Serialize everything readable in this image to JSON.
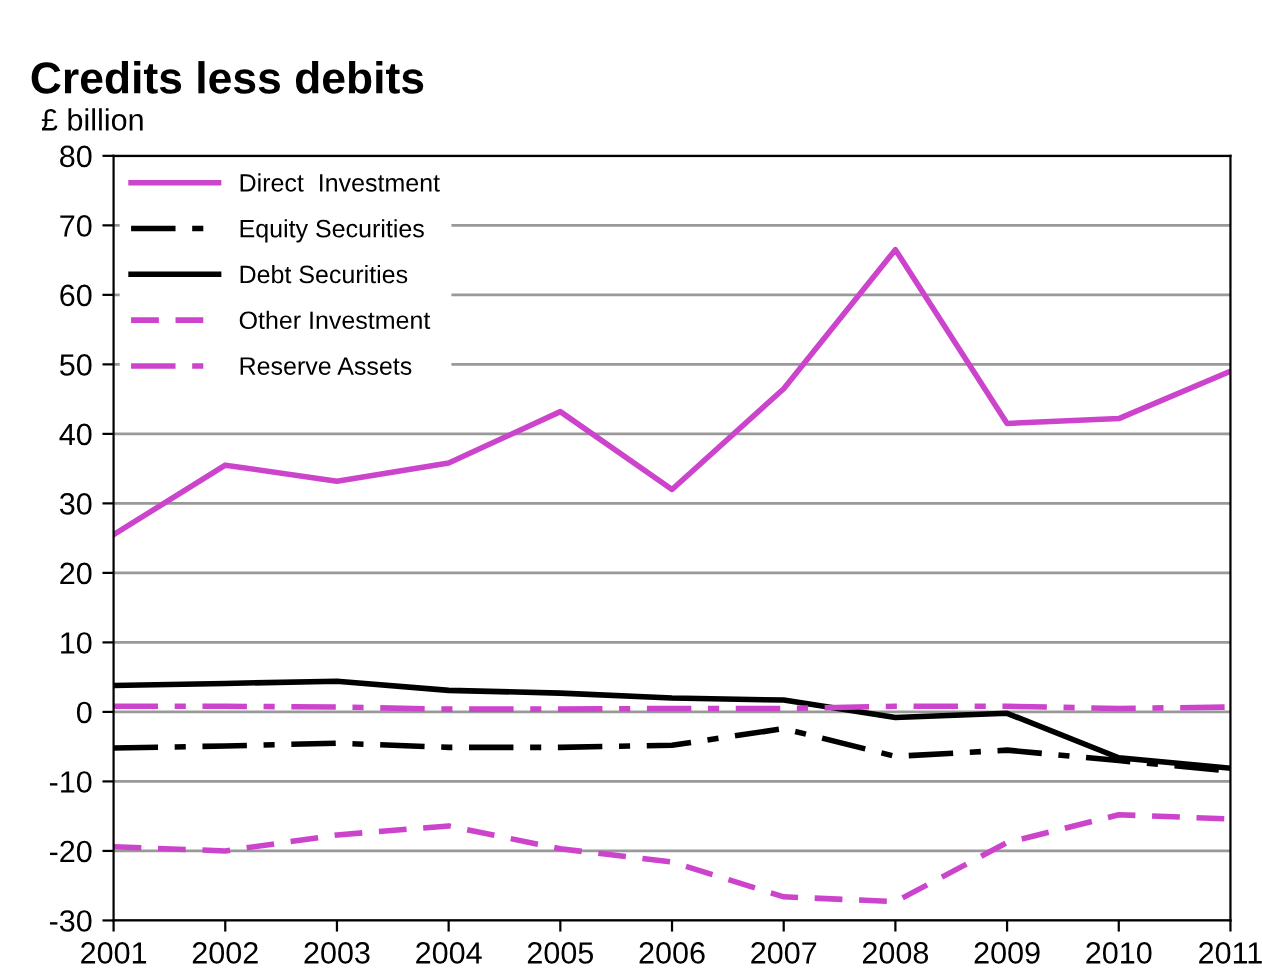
{
  "chart_data": {
    "type": "line",
    "title": "Credits less debits",
    "ylabel": "£ billion",
    "x": [
      2001,
      2002,
      2003,
      2004,
      2005,
      2006,
      2007,
      2008,
      2009,
      2010,
      2011
    ],
    "xlim": [
      2001,
      2011
    ],
    "xticks": [
      2001,
      2002,
      2003,
      2004,
      2005,
      2006,
      2007,
      2008,
      2009,
      2010,
      2011
    ],
    "ylim": [
      -30,
      80
    ],
    "yticks": [
      -30,
      -20,
      -10,
      0,
      10,
      20,
      30,
      40,
      50,
      60,
      70,
      80
    ],
    "grid": "y",
    "legend": "top left",
    "marker": "none",
    "series": [
      {
        "name": "Direct  Investment",
        "color": "#cc44cc",
        "line_style": "solid",
        "values": [
          25.5,
          35.5,
          33.2,
          35.8,
          43.2,
          32.0,
          46.5,
          66.5,
          41.5,
          42.2,
          49.0
        ]
      },
      {
        "name": "Equity Securities",
        "color": "#000000",
        "line_style": "dashdot",
        "values": [
          -5.2,
          -4.9,
          -4.5,
          -5.1,
          -5.1,
          -4.8,
          -2.4,
          -6.4,
          -5.5,
          -7.0,
          -8.5
        ]
      },
      {
        "name": "Debt Securities",
        "color": "#000000",
        "line_style": "solid",
        "values": [
          3.8,
          4.1,
          4.4,
          3.1,
          2.7,
          2.0,
          1.7,
          -0.8,
          -0.2,
          -6.6,
          -8.1
        ]
      },
      {
        "name": "Other Investment",
        "color": "#cc44cc",
        "line_style": "dashed",
        "values": [
          -19.4,
          -20.0,
          -17.7,
          -16.4,
          -19.7,
          -21.6,
          -26.6,
          -27.3,
          -18.8,
          -14.8,
          -15.4
        ]
      },
      {
        "name": "Reserve Assets",
        "color": "#cc44cc",
        "line_style": "dashdot",
        "values": [
          0.8,
          0.8,
          0.7,
          0.4,
          0.4,
          0.5,
          0.5,
          0.8,
          0.8,
          0.5,
          0.7
        ]
      }
    ]
  }
}
